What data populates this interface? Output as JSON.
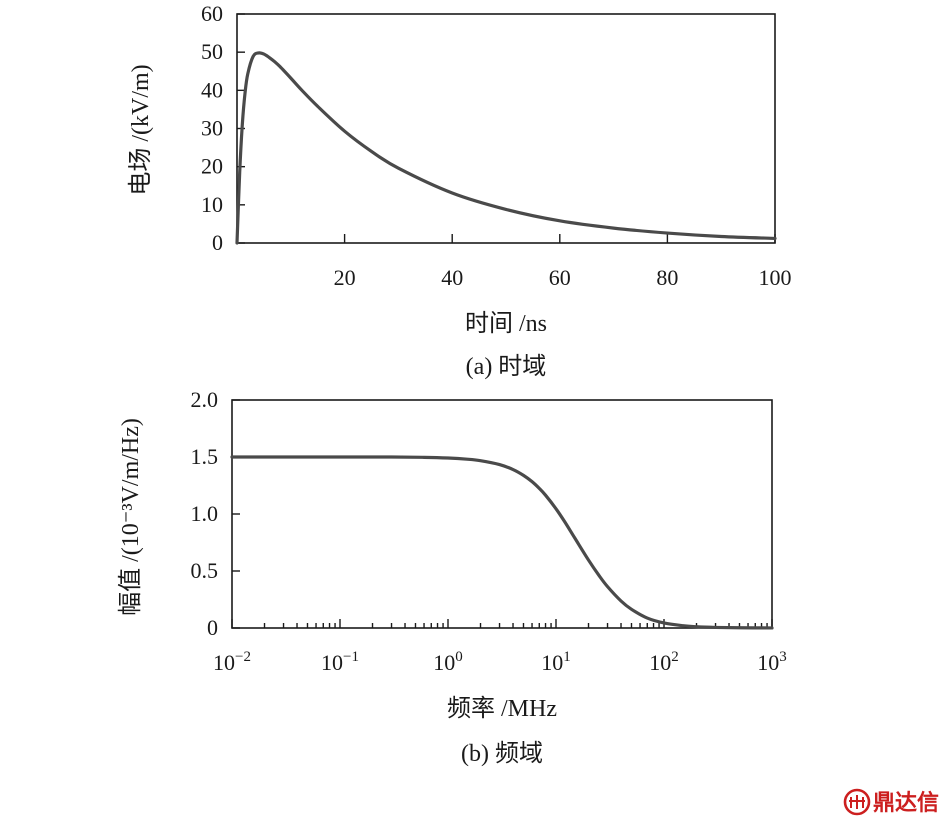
{
  "colors": {
    "curve": "#4a4a4a",
    "axis": "#1a1a1a",
    "watermark": "#cc1f1f"
  },
  "chart_data": [
    {
      "type": "line",
      "caption": "(a) 时域",
      "xlabel": "时间 /ns",
      "ylabel": "电场 /(kV/m)",
      "xlim": [
        0,
        100
      ],
      "ylim": [
        0,
        60
      ],
      "xticks": [
        20,
        40,
        60,
        80,
        100
      ],
      "yticks": [
        0,
        10,
        20,
        30,
        40,
        50,
        60
      ],
      "xticklabels": [
        "20",
        "40",
        "60",
        "80",
        "100"
      ],
      "yticklabels": [
        "0",
        "10",
        "20",
        "30",
        "40",
        "50",
        "60"
      ],
      "grid": false,
      "series": [
        {
          "x": [
            0,
            0.5,
            1,
            1.5,
            2,
            3,
            4,
            5,
            6,
            7,
            8,
            10,
            12,
            15,
            20,
            25,
            30,
            40,
            50,
            60,
            70,
            80,
            90,
            100
          ],
          "y": [
            0,
            18.5,
            31.3,
            39.4,
            44.3,
            48.9,
            49.8,
            49.5,
            48.6,
            47.5,
            46.2,
            43.2,
            40.1,
            35.8,
            29.3,
            24.0,
            19.6,
            13.1,
            8.8,
            5.8,
            3.9,
            2.6,
            1.7,
            1.2
          ]
        }
      ]
    },
    {
      "type": "line",
      "caption": "(b) 频域",
      "xlabel": "频率 /MHz",
      "ylabel": "幅值 /(10⁻³V/m/Hz)",
      "xscale": "log",
      "xlim": [
        0.01,
        1000
      ],
      "ylim": [
        0,
        2.0
      ],
      "xticks": [
        0.01,
        0.1,
        1,
        10,
        100,
        1000
      ],
      "xticklabels": [
        {
          "base": "10",
          "exp": "−2"
        },
        {
          "base": "10",
          "exp": "−1"
        },
        {
          "base": "10",
          "exp": "0"
        },
        {
          "base": "10",
          "exp": "1"
        },
        {
          "base": "10",
          "exp": "2"
        },
        {
          "base": "10",
          "exp": "3"
        }
      ],
      "yticks": [
        0,
        0.5,
        1.0,
        1.5,
        2.0
      ],
      "yticklabels": [
        "0",
        "0.5",
        "1.0",
        "1.5",
        "2.0"
      ],
      "grid": false,
      "series": [
        {
          "x": [
            0.01,
            0.03,
            0.1,
            0.3,
            0.6,
            1,
            1.5,
            2,
            3,
            4,
            5,
            6,
            7,
            8,
            10,
            12,
            15,
            20,
            25,
            30,
            40,
            50,
            70,
            100,
            150,
            200,
            300,
            500,
            1000
          ],
          "y": [
            1.5,
            1.5,
            1.5,
            1.5,
            1.497,
            1.491,
            1.481,
            1.468,
            1.434,
            1.39,
            1.339,
            1.284,
            1.225,
            1.165,
            1.046,
            0.934,
            0.786,
            0.596,
            0.461,
            0.363,
            0.237,
            0.164,
            0.087,
            0.044,
            0.02,
            0.011,
            0.005,
            0.002,
            0.0005
          ]
        }
      ]
    }
  ],
  "watermark": {
    "text": "鼎达信"
  }
}
